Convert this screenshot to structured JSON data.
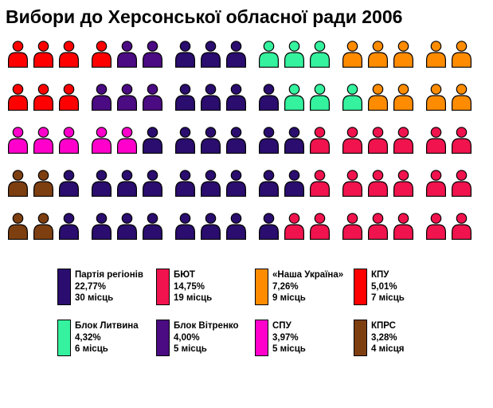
{
  "title": "Вибори до Херсонської обласної ради 2006",
  "chart_data": {
    "type": "pictogram",
    "title": "Вибори до Херсонської обласної ради 2006",
    "total_seats": 85,
    "legend_position": "bottom",
    "parties": [
      {
        "name": "Партія регіонів",
        "percent": "22,77%",
        "seats": 30,
        "seats_label": "30 місць",
        "color": "#2A0D6E"
      },
      {
        "name": "БЮТ",
        "percent": "14,75%",
        "seats": 19,
        "seats_label": "19 місць",
        "color": "#F0134D"
      },
      {
        "name": "«Наша Україна»",
        "percent": "7,26%",
        "seats": 9,
        "seats_label": "9 місць",
        "color": "#FF8C00"
      },
      {
        "name": "КПУ",
        "percent": "5,01%",
        "seats": 7,
        "seats_label": "7 місць",
        "color": "#FF0000"
      },
      {
        "name": "Блок Литвина",
        "percent": "4,32%",
        "seats": 6,
        "seats_label": "6 місць",
        "color": "#35F29E"
      },
      {
        "name": "Блок Вітренко",
        "percent": "4,00%",
        "seats": 5,
        "seats_label": "5 місць",
        "color": "#4B0B82"
      },
      {
        "name": "СПУ",
        "percent": "3,97%",
        "seats": 5,
        "seats_label": "5 місць",
        "color": "#FF00CC"
      },
      {
        "name": "КПРС",
        "percent": "3,28%",
        "seats": 4,
        "seats_label": "4 місця",
        "color": "#7E3F10"
      }
    ],
    "icon_rows": [
      [
        {
          "party": "КПУ",
          "count": 4
        },
        {
          "party": "Блок Вітренко",
          "count": 2
        },
        {
          "party": "Партія регіонів",
          "count": 3
        },
        {
          "party": "Блок Литвина",
          "count": 3
        },
        {
          "party": "«Наша Україна»",
          "count": 5
        }
      ],
      [
        {
          "party": "КПУ",
          "count": 3
        },
        {
          "party": "Блок Вітренко",
          "count": 3
        },
        {
          "party": "Партія регіонів",
          "count": 4
        },
        {
          "party": "Блок Литвина",
          "count": 3
        },
        {
          "party": "«Наша Україна»",
          "count": 4
        }
      ],
      [
        {
          "party": "СПУ",
          "count": 5
        },
        {
          "party": "Партія регіонів",
          "count": 6
        },
        {
          "party": "БЮТ",
          "count": 6
        }
      ],
      [
        {
          "party": "КПРС",
          "count": 2
        },
        {
          "party": "Партія регіонів",
          "count": 9
        },
        {
          "party": "БЮТ",
          "count": 6
        }
      ],
      [
        {
          "party": "КПРС",
          "count": 2
        },
        {
          "party": "Партія регіонів",
          "count": 8
        },
        {
          "party": "БЮТ",
          "count": 7
        }
      ]
    ]
  },
  "legend": {
    "rows": [
      [
        0,
        1,
        2,
        3
      ],
      [
        4,
        5,
        6,
        7
      ]
    ]
  }
}
